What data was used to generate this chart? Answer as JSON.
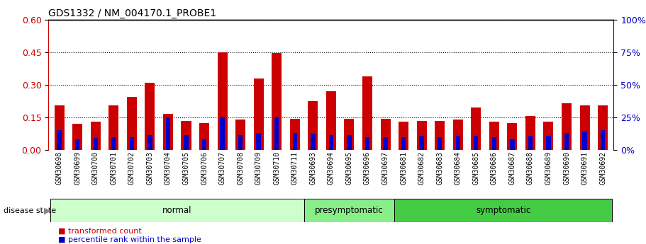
{
  "title": "GDS1332 / NM_004170.1_PROBE1",
  "categories": [
    "GSM30698",
    "GSM30699",
    "GSM30700",
    "GSM30701",
    "GSM30702",
    "GSM30703",
    "GSM30704",
    "GSM30705",
    "GSM30706",
    "GSM30707",
    "GSM30708",
    "GSM30709",
    "GSM30710",
    "GSM30711",
    "GSM30693",
    "GSM30694",
    "GSM30695",
    "GSM30696",
    "GSM30697",
    "GSM30681",
    "GSM30682",
    "GSM30683",
    "GSM30684",
    "GSM30685",
    "GSM30686",
    "GSM30687",
    "GSM30688",
    "GSM30689",
    "GSM30690",
    "GSM30691",
    "GSM30692"
  ],
  "red_values": [
    0.205,
    0.12,
    0.13,
    0.205,
    0.245,
    0.31,
    0.165,
    0.135,
    0.125,
    0.45,
    0.14,
    0.33,
    0.445,
    0.145,
    0.225,
    0.27,
    0.145,
    0.34,
    0.145,
    0.13,
    0.135,
    0.135,
    0.14,
    0.195,
    0.13,
    0.125,
    0.155,
    0.13,
    0.215,
    0.205,
    0.205
  ],
  "blue_heights": [
    0.09,
    0.05,
    0.055,
    0.06,
    0.06,
    0.07,
    0.15,
    0.07,
    0.05,
    0.15,
    0.07,
    0.08,
    0.15,
    0.08,
    0.075,
    0.07,
    0.07,
    0.06,
    0.06,
    0.06,
    0.065,
    0.06,
    0.065,
    0.065,
    0.06,
    0.05,
    0.065,
    0.065,
    0.08,
    0.085,
    0.09
  ],
  "groups": [
    {
      "label": "normal",
      "start": 0,
      "end": 14,
      "color": "#ccffcc"
    },
    {
      "label": "presymptomatic",
      "start": 14,
      "end": 19,
      "color": "#88ee88"
    },
    {
      "label": "symptomatic",
      "start": 19,
      "end": 31,
      "color": "#44cc44"
    }
  ],
  "ylim_left": [
    0,
    0.6
  ],
  "ylim_right": [
    0,
    100
  ],
  "yticks_left": [
    0,
    0.15,
    0.3,
    0.45,
    0.6
  ],
  "yticks_right": [
    0,
    25,
    50,
    75,
    100
  ],
  "left_axis_color": "#cc0000",
  "right_axis_color": "#0000cc",
  "bar_color_red": "#cc0000",
  "bar_color_blue": "#0000cc",
  "grid_color": "black",
  "legend_red": "transformed count",
  "legend_blue": "percentile rank within the sample",
  "disease_state_label": "disease state",
  "xticklabel_bg": "#cccccc",
  "bar_width": 0.55,
  "blue_bar_width": 0.25
}
